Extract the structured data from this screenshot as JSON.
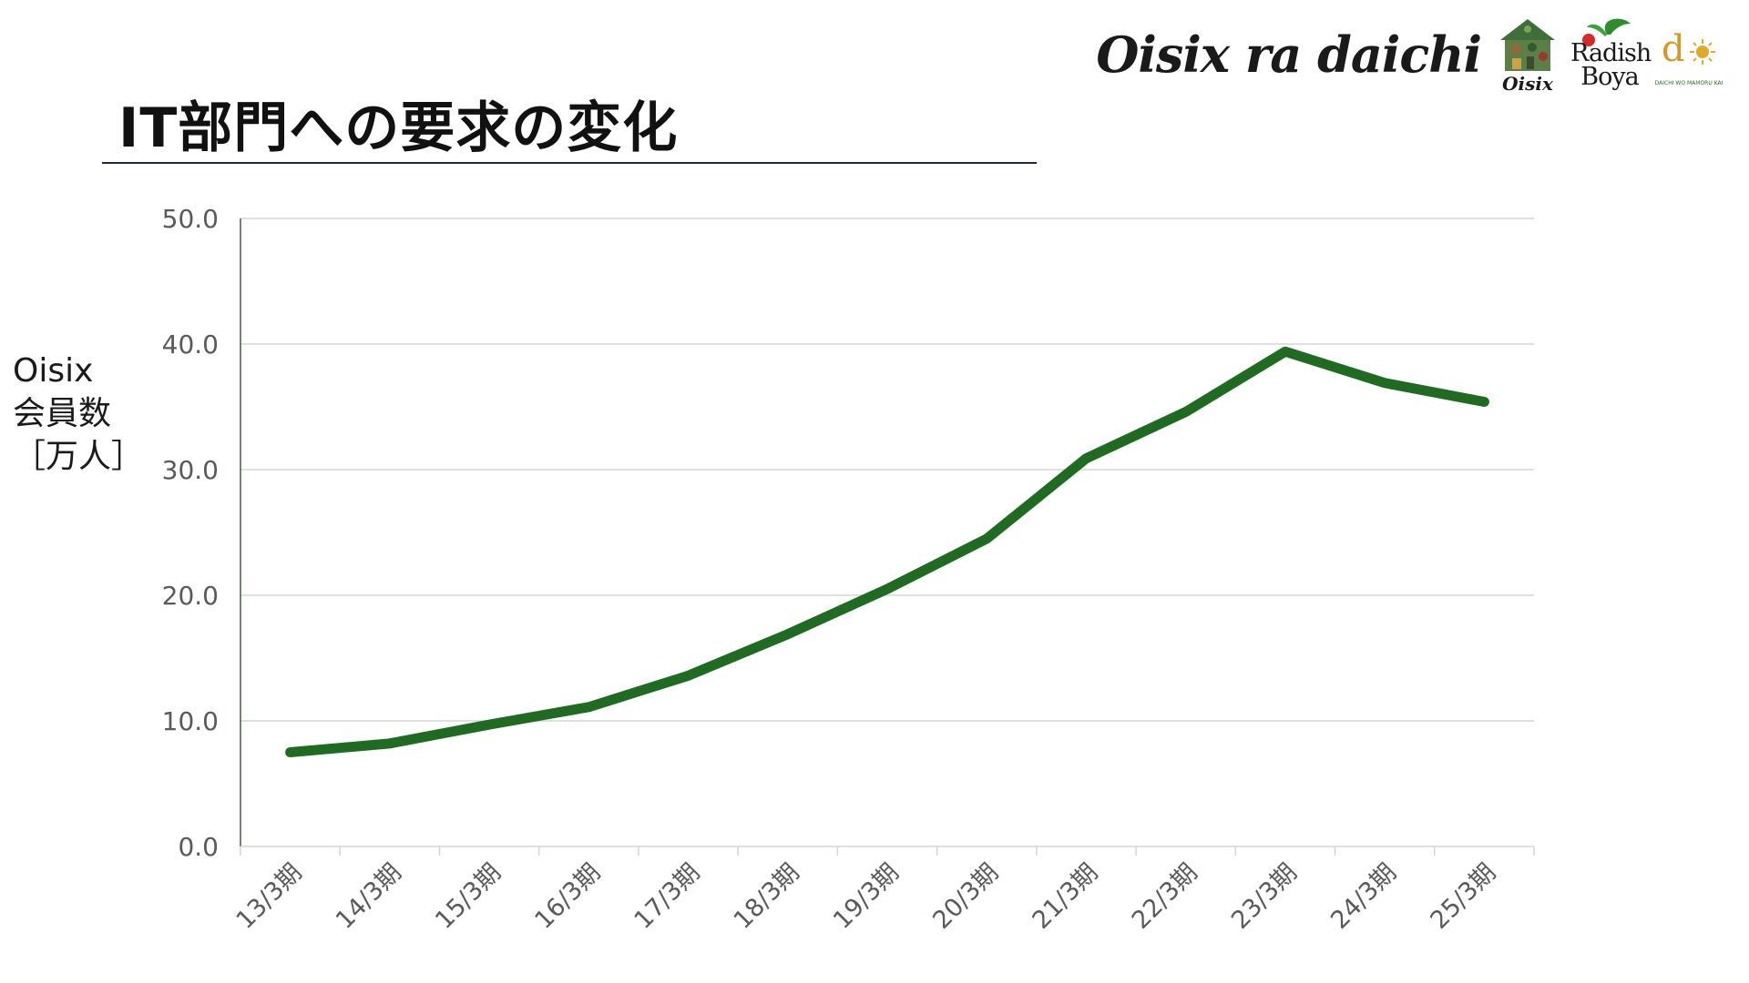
{
  "slide": {
    "title": "IT部門への要求の変化"
  },
  "brand": {
    "wordmark": "Oisix ra daichi",
    "logos": {
      "oisix": "Oisix",
      "radish_boya": "Radish Boya",
      "daichi_mark": "d",
      "daichi_sub": "DAICHI WO MAMORU KAI"
    }
  },
  "colors": {
    "line": "#1f6b22",
    "grid": "#d6d6d6",
    "axis": "#2e6b2e",
    "tick_text": "#5a5a5a",
    "title_rule": "#1f2a44"
  },
  "chart_data": {
    "type": "line",
    "title": "",
    "ylabel_lines": [
      "Oisix",
      "会員数",
      "［万人］"
    ],
    "xlabel": "",
    "ylim": [
      0,
      50
    ],
    "yticks": [
      "0.0",
      "10.0",
      "20.0",
      "30.0",
      "40.0",
      "50.0"
    ],
    "ytick_values": [
      0,
      10,
      20,
      30,
      40,
      50
    ],
    "grid": true,
    "categories": [
      "13/3期",
      "14/3期",
      "15/3期",
      "16/3期",
      "17/3期",
      "18/3期",
      "19/3期",
      "20/3期",
      "21/3期",
      "22/3期",
      "23/3期",
      "24/3期",
      "25/3期"
    ],
    "series": [
      {
        "values": [
          7.5,
          8.2,
          9.7,
          11.1,
          13.6,
          16.9,
          20.5,
          24.5,
          30.9,
          34.6,
          39.4,
          36.9,
          35.4
        ]
      }
    ]
  }
}
